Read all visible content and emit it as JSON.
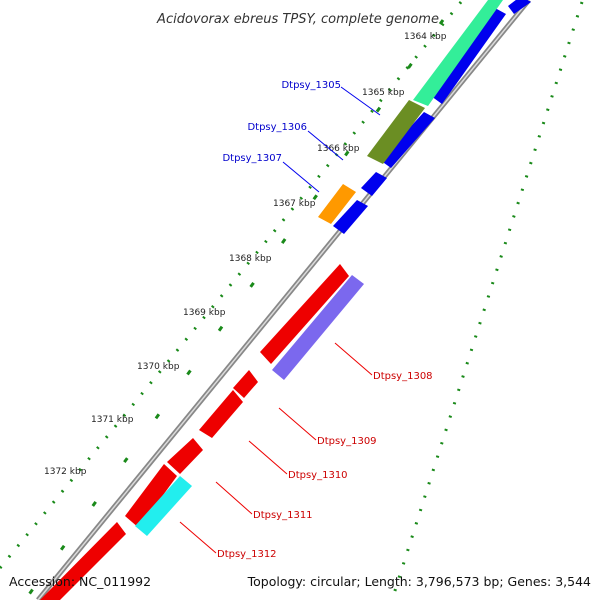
{
  "title": "Acidovorax ebreus TPSY, complete genome",
  "footer": {
    "accession": "Accession: NC_011992",
    "summary": "Topology: circular; Length: 3,796,573 bp; Genes: 3,544"
  },
  "ticks": [
    "1364 kbp",
    "1365 kbp",
    "1366 kbp",
    "1367 kbp",
    "1368 kbp",
    "1369 kbp",
    "1370 kbp",
    "1371 kbp",
    "1372 kbp"
  ],
  "genes": {
    "forward_strand": [
      "Dtpsy_1305",
      "Dtpsy_1306",
      "Dtpsy_1307"
    ],
    "reverse_strand": [
      "Dtpsy_1308",
      "Dtpsy_1309",
      "Dtpsy_1310",
      "Dtpsy_1311",
      "Dtpsy_1312"
    ]
  },
  "colors": {
    "forward": "#0000ee",
    "reverse": "#ee0000",
    "backbone": "#888888",
    "dots": "#1a8a1a",
    "teal": "#33ee99",
    "olive": "#6b8e23",
    "orange": "#ff9900",
    "purple": "#7b68ee",
    "cyan": "#22eeee"
  }
}
